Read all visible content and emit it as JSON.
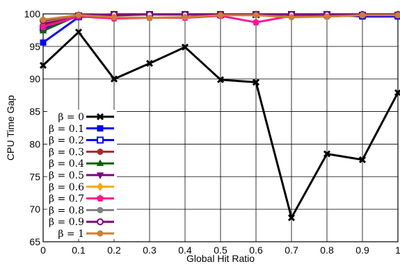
{
  "chart_data": {
    "type": "line",
    "xlabel": "Global Hit Ratio",
    "ylabel": "CPU Time Gap",
    "xlim": [
      0,
      1
    ],
    "ylim": [
      65,
      100
    ],
    "x_ticks": [
      "0",
      "0.1",
      "0.2",
      "0.3",
      "0.4",
      "0.5",
      "0.6",
      "0.7",
      "0.8",
      "0.9",
      "1"
    ],
    "y_ticks": [
      "65",
      "70",
      "75",
      "80",
      "85",
      "90",
      "95",
      "100"
    ],
    "grid": true,
    "legend_position": "bottom-left",
    "x": [
      0,
      0.1,
      0.2,
      0.3,
      0.4,
      0.5,
      0.6,
      0.7,
      0.8,
      0.9,
      1
    ],
    "series": [
      {
        "name": "β = 0",
        "color": "#000000",
        "marker": "x",
        "values": [
          92.1,
          97.2,
          90.0,
          92.4,
          94.9,
          89.9,
          89.5,
          68.7,
          78.5,
          77.6,
          87.9
        ]
      },
      {
        "name": "β = 0.1",
        "color": "#0000ff",
        "marker": "square",
        "values": [
          95.6,
          99.5,
          99.8,
          99.9,
          99.9,
          99.9,
          99.9,
          99.9,
          99.9,
          99.6,
          99.6
        ]
      },
      {
        "name": "β = 0.2",
        "color": "#0000ff",
        "marker": "square-open",
        "values": [
          97.8,
          99.7,
          99.9,
          99.9,
          99.9,
          99.9,
          99.9,
          99.9,
          99.9,
          99.8,
          99.8
        ]
      },
      {
        "name": "β = 0.3",
        "color": "#a52a2a",
        "marker": "circle",
        "values": [
          98.3,
          99.8,
          99.9,
          99.9,
          99.9,
          99.9,
          99.9,
          99.9,
          99.9,
          99.9,
          99.9
        ]
      },
      {
        "name": "β = 0.4",
        "color": "#006400",
        "marker": "triangle",
        "values": [
          97.4,
          99.8,
          99.9,
          99.9,
          99.9,
          99.9,
          99.9,
          99.9,
          99.9,
          99.9,
          99.9
        ]
      },
      {
        "name": "β = 0.5",
        "color": "#800080",
        "marker": "triangle-down",
        "values": [
          98.5,
          99.8,
          99.9,
          99.9,
          99.9,
          99.9,
          99.9,
          99.9,
          99.9,
          99.9,
          99.9
        ]
      },
      {
        "name": "β = 0.6",
        "color": "#ffa500",
        "marker": "diamond",
        "values": [
          98.8,
          99.8,
          99.9,
          99.9,
          99.9,
          99.9,
          99.9,
          99.9,
          99.9,
          99.9,
          99.9
        ]
      },
      {
        "name": "β = 0.7",
        "color": "#ff1493",
        "marker": "pentagon",
        "values": [
          98.0,
          99.6,
          99.3,
          99.4,
          99.4,
          99.7,
          98.7,
          99.7,
          99.6,
          99.8,
          99.8
        ]
      },
      {
        "name": "β = 0.8",
        "color": "#808080",
        "marker": "circle",
        "values": [
          98.9,
          99.8,
          99.9,
          99.9,
          99.9,
          99.9,
          99.9,
          99.9,
          99.9,
          99.9,
          99.9
        ]
      },
      {
        "name": "β = 0.9",
        "color": "#800080",
        "marker": "circle-open",
        "values": [
          99.0,
          99.8,
          99.9,
          99.9,
          99.9,
          99.9,
          99.9,
          99.9,
          99.9,
          99.9,
          99.9
        ]
      },
      {
        "name": "β = 1",
        "color": "#cd7f32",
        "marker": "circle",
        "values": [
          99.1,
          99.8,
          99.5,
          99.4,
          99.5,
          99.8,
          99.8,
          99.5,
          99.6,
          99.8,
          99.8
        ]
      }
    ]
  }
}
